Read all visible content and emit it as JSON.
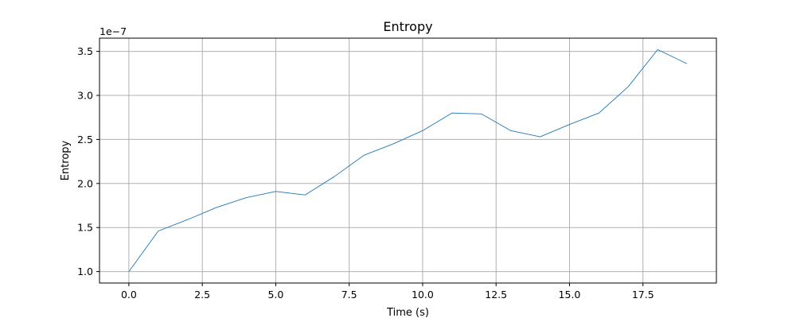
{
  "chart_data": {
    "type": "line",
    "title": "Entropy",
    "xlabel": "Time (s)",
    "ylabel": "Entropy",
    "offset_text": "1e−7",
    "xlim": [
      -1.0,
      20.0
    ],
    "ylim": [
      0.87,
      3.65
    ],
    "x_ticks": [
      0.0,
      2.5,
      5.0,
      7.5,
      10.0,
      12.5,
      15.0,
      17.5
    ],
    "x_tick_labels": [
      "0.0",
      "2.5",
      "5.0",
      "7.5",
      "10.0",
      "12.5",
      "15.0",
      "17.5"
    ],
    "y_ticks": [
      1.0,
      1.5,
      2.0,
      2.5,
      3.0,
      3.5
    ],
    "y_tick_labels": [
      "1.0",
      "1.5",
      "2.0",
      "2.5",
      "3.0",
      "3.5"
    ],
    "grid": true,
    "line_color": "#1f77b4",
    "series": [
      {
        "x": [
          0,
          1,
          2,
          3,
          4,
          5,
          6,
          7,
          8,
          9,
          10,
          11,
          12,
          13,
          14,
          15,
          16,
          17,
          18,
          19
        ],
        "values": [
          1.0,
          1.46,
          1.59,
          1.73,
          1.84,
          1.91,
          1.87,
          2.08,
          2.32,
          2.45,
          2.6,
          2.8,
          2.79,
          2.6,
          2.53,
          2.67,
          2.8,
          3.1,
          3.52,
          3.36
        ]
      }
    ]
  }
}
